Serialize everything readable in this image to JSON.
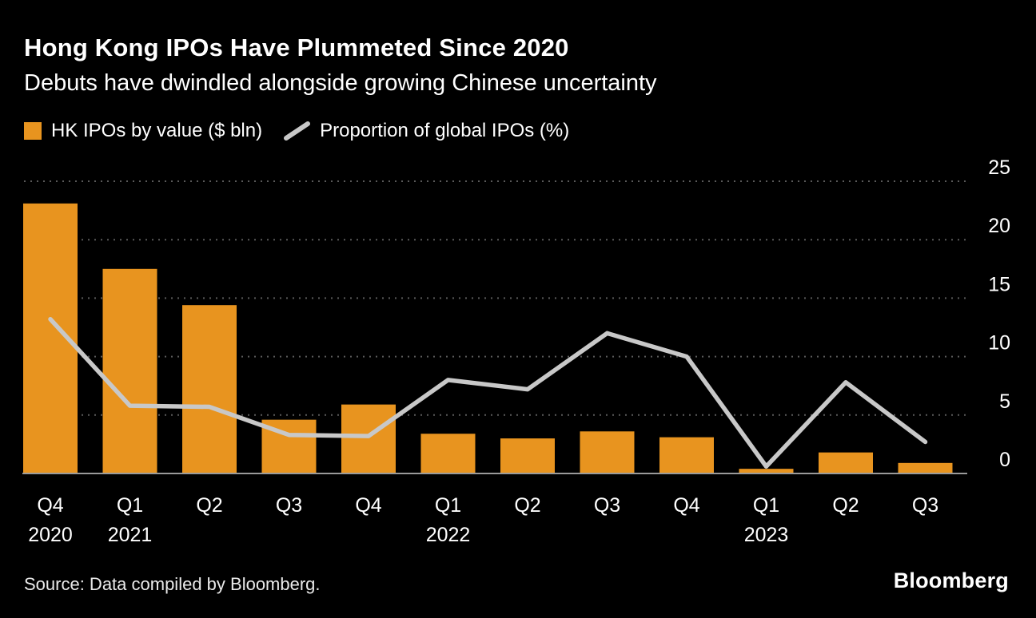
{
  "header": {
    "title": "Hong Kong IPOs Have Plummeted Since 2020",
    "subtitle": "Debuts have dwindled alongside growing Chinese uncertainty"
  },
  "legend": [
    {
      "label": "HK IPOs by value ($ bln)",
      "type": "bar",
      "color": "#E8941F"
    },
    {
      "label": "Proportion of global IPOs (%)",
      "type": "line",
      "color": "#C8C8C8"
    }
  ],
  "chart_data": {
    "type": "bar+line",
    "categories": [
      "Q4",
      "Q1",
      "Q2",
      "Q3",
      "Q4",
      "Q1",
      "Q2",
      "Q3",
      "Q4",
      "Q1",
      "Q2",
      "Q3"
    ],
    "year_labels": [
      {
        "index": 0,
        "label": "2020"
      },
      {
        "index": 1,
        "label": "2021"
      },
      {
        "index": 5,
        "label": "2022"
      },
      {
        "index": 9,
        "label": "2023"
      }
    ],
    "series": [
      {
        "name": "HK IPOs by value ($ bln)",
        "type": "bar",
        "color": "#E8941F",
        "values": [
          23.1,
          17.5,
          14.4,
          4.6,
          5.9,
          3.4,
          3.0,
          3.6,
          3.1,
          0.4,
          1.8,
          0.9
        ]
      },
      {
        "name": "Proportion of global IPOs (%)",
        "type": "line",
        "color": "#C8C8C8",
        "values": [
          13.2,
          5.8,
          5.7,
          3.3,
          3.2,
          8.0,
          7.2,
          12.0,
          10.0,
          0.6,
          7.8,
          2.7
        ]
      }
    ],
    "ylim": [
      0,
      25
    ],
    "yticks": [
      0,
      5,
      10,
      15,
      20,
      25
    ],
    "grid": "dotted horizontal",
    "legend_position": "top",
    "axis_side": "right",
    "title": "Hong Kong IPOs Have Plummeted Since 2020",
    "xlabel": "",
    "ylabel": ""
  },
  "footer": {
    "source": "Source: Data compiled by Bloomberg.",
    "logo": "Bloomberg"
  },
  "colors": {
    "background": "#000000",
    "bar": "#E8941F",
    "line": "#C8C8C8",
    "grid": "#5a5a5a",
    "axis": "#9a9a9a",
    "text": "#ffffff"
  }
}
